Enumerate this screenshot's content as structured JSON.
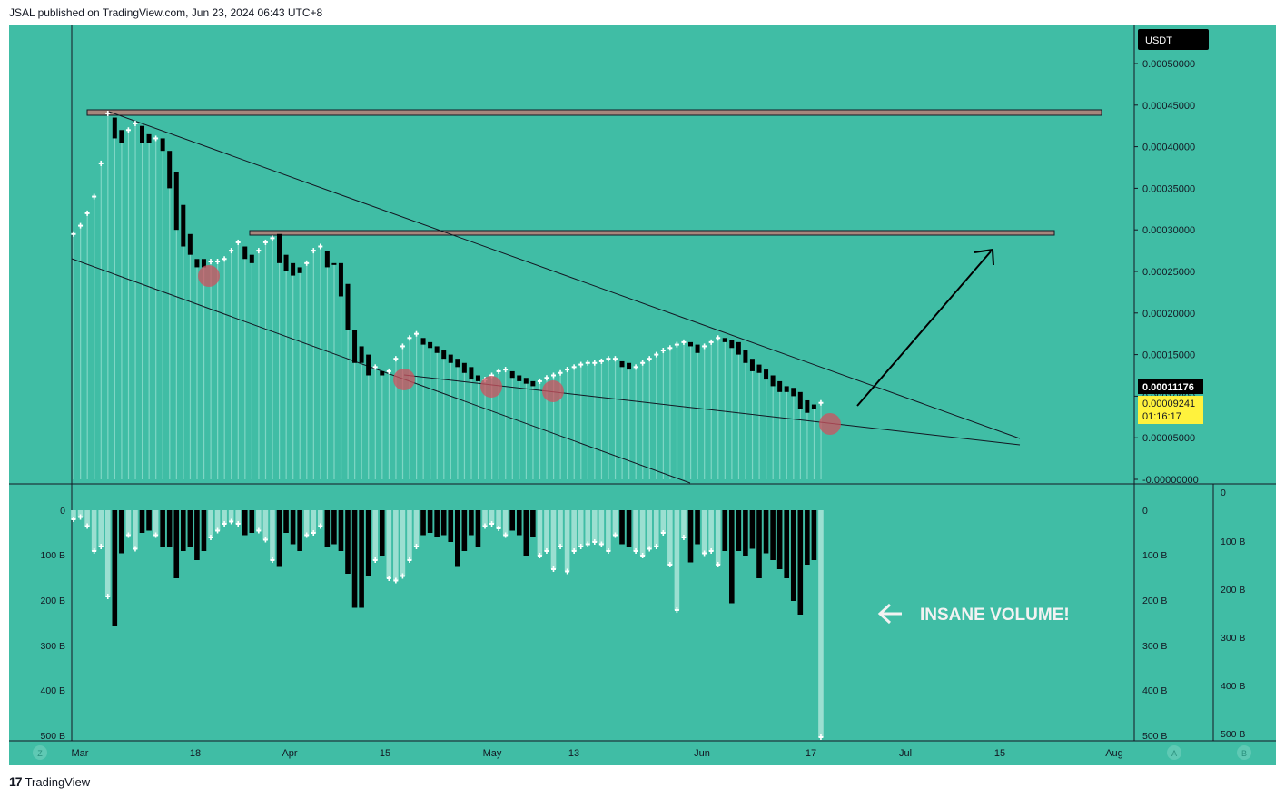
{
  "header": {
    "published": "JSAL published on TradingView.com, Jun 23, 2024 06:43 UTC+8"
  },
  "footer": {
    "brand": "TradingView"
  },
  "colors": {
    "background": "#40bda5",
    "bear_candle": "#000000",
    "bull_candle": "#ffffff",
    "line_histogram": "#7fd6c5",
    "resistance_box": "#a7867c",
    "touch_circle": "#d0525f",
    "last_price_bg": "#000000",
    "current_price_bg": "#fff23d"
  },
  "price_axis": {
    "currency": "USDT",
    "ticks": [
      "0.00050000",
      "0.00045000",
      "0.00040000",
      "0.00035000",
      "0.00030000",
      "0.00025000",
      "0.00020000",
      "0.00015000",
      "0.00010000",
      "0.00005000",
      "-0.00000000"
    ],
    "last_price": "0.00011176",
    "current_price": "0.00009241",
    "countdown": "01:16:17"
  },
  "volume_axis": {
    "left_ticks": [
      "0",
      "100 B",
      "200 B",
      "300 B",
      "400 B",
      "500 B"
    ],
    "inner_right_ticks": [
      "0",
      "100 B",
      "200 B",
      "300 B",
      "400 B",
      "500 B"
    ],
    "outer_right_ticks": [
      "0",
      "100 B",
      "200 B",
      "300 B",
      "400 B",
      "500 B"
    ]
  },
  "time_axis": {
    "ticks": [
      "Mar",
      "18",
      "Apr",
      "15",
      "May",
      "13",
      "Jun",
      "17",
      "Jul",
      "15",
      "Aug"
    ],
    "scale_buttons": [
      "Z",
      "A",
      "B"
    ]
  },
  "annotations": {
    "volume_note": "INSANE VOLUME!"
  },
  "chart_data": {
    "type": "candlestick",
    "series": [
      {
        "name": "price",
        "points": [
          [
            0,
            0.000295,
            0.000295,
            "up"
          ],
          [
            1,
            0.000305,
            0.000305,
            "up"
          ],
          [
            2,
            0.00032,
            0.00032,
            "up"
          ],
          [
            3,
            0.00034,
            0.00034,
            "up"
          ],
          [
            4,
            0.00037,
            0.00038,
            "up"
          ],
          [
            5,
            0.00043,
            0.00044,
            "up"
          ],
          [
            6,
            0.000435,
            0.00041,
            "down"
          ],
          [
            7,
            0.00042,
            0.000405,
            "down"
          ],
          [
            8,
            0.00042,
            0.000418,
            "up"
          ],
          [
            9,
            0.000425,
            0.000428,
            "up"
          ],
          [
            10,
            0.000425,
            0.000405,
            "down"
          ],
          [
            11,
            0.000415,
            0.000405,
            "down"
          ],
          [
            12,
            0.00041,
            0.00041,
            "up"
          ],
          [
            13,
            0.00041,
            0.000395,
            "down"
          ],
          [
            14,
            0.000395,
            0.00035,
            "down"
          ],
          [
            15,
            0.00037,
            0.0003,
            "down"
          ],
          [
            16,
            0.00033,
            0.00028,
            "down"
          ],
          [
            17,
            0.000295,
            0.00027,
            "down"
          ],
          [
            18,
            0.000265,
            0.000255,
            "down"
          ],
          [
            19,
            0.000265,
            0.000255,
            "down"
          ],
          [
            20,
            0.000262,
            0.000258,
            "up"
          ],
          [
            21,
            0.000262,
            0.000262,
            "up"
          ],
          [
            22,
            0.000265,
            0.000265,
            "up"
          ],
          [
            23,
            0.000275,
            0.000275,
            "up"
          ],
          [
            24,
            0.000285,
            0.000285,
            "up"
          ],
          [
            25,
            0.00028,
            0.000265,
            "down"
          ],
          [
            26,
            0.00027,
            0.00026,
            "down"
          ],
          [
            27,
            0.000275,
            0.000275,
            "up"
          ],
          [
            28,
            0.000285,
            0.000285,
            "up"
          ],
          [
            29,
            0.00029,
            0.00029,
            "up"
          ],
          [
            30,
            0.000295,
            0.00026,
            "down"
          ],
          [
            31,
            0.00027,
            0.00025,
            "down"
          ],
          [
            32,
            0.00026,
            0.000245,
            "down"
          ],
          [
            33,
            0.000255,
            0.000248,
            "down"
          ],
          [
            34,
            0.00026,
            0.00026,
            "up"
          ],
          [
            35,
            0.000275,
            0.000275,
            "up"
          ],
          [
            36,
            0.00028,
            0.00028,
            "up"
          ],
          [
            37,
            0.000275,
            0.000255,
            "down"
          ],
          [
            38,
            0.00026,
            0.00026,
            "down"
          ],
          [
            39,
            0.00026,
            0.00022,
            "down"
          ],
          [
            40,
            0.000235,
            0.00018,
            "down"
          ],
          [
            41,
            0.00018,
            0.00014,
            "down"
          ],
          [
            42,
            0.00016,
            0.00014,
            "down"
          ],
          [
            43,
            0.00015,
            0.000125,
            "down"
          ],
          [
            44,
            0.000135,
            0.000125,
            "up"
          ],
          [
            45,
            0.00013,
            0.000125,
            "down"
          ],
          [
            46,
            0.00013,
            0.00013,
            "up"
          ],
          [
            47,
            0.000145,
            0.000145,
            "up"
          ],
          [
            48,
            0.00016,
            0.00016,
            "up"
          ],
          [
            49,
            0.00017,
            0.00017,
            "up"
          ],
          [
            50,
            0.000175,
            0.000175,
            "up"
          ],
          [
            51,
            0.00017,
            0.000162,
            "down"
          ],
          [
            52,
            0.000165,
            0.000158,
            "down"
          ],
          [
            53,
            0.00016,
            0.000152,
            "down"
          ],
          [
            54,
            0.000155,
            0.000145,
            "down"
          ],
          [
            55,
            0.00015,
            0.00014,
            "down"
          ],
          [
            56,
            0.000145,
            0.000135,
            "down"
          ],
          [
            57,
            0.00014,
            0.000128,
            "down"
          ],
          [
            58,
            0.000135,
            0.00012,
            "down"
          ],
          [
            59,
            0.000125,
            0.000118,
            "down"
          ],
          [
            60,
            0.00012,
            0.00012,
            "up"
          ],
          [
            61,
            0.000125,
            0.000125,
            "up"
          ],
          [
            62,
            0.00013,
            0.00013,
            "up"
          ],
          [
            63,
            0.000132,
            0.000132,
            "up"
          ],
          [
            64,
            0.00013,
            0.000122,
            "down"
          ],
          [
            65,
            0.000125,
            0.000118,
            "down"
          ],
          [
            66,
            0.000122,
            0.000115,
            "down"
          ],
          [
            67,
            0.000118,
            0.000112,
            "down"
          ],
          [
            68,
            0.000118,
            0.000118,
            "up"
          ],
          [
            69,
            0.000122,
            0.000122,
            "up"
          ],
          [
            70,
            0.000125,
            0.000125,
            "up"
          ],
          [
            71,
            0.000128,
            0.000128,
            "up"
          ],
          [
            72,
            0.000132,
            0.000132,
            "up"
          ],
          [
            73,
            0.000135,
            0.000135,
            "up"
          ],
          [
            74,
            0.000138,
            0.000138,
            "up"
          ],
          [
            75,
            0.00014,
            0.00014,
            "up"
          ],
          [
            76,
            0.00014,
            0.00014,
            "up"
          ],
          [
            77,
            0.000142,
            0.000142,
            "up"
          ],
          [
            78,
            0.000145,
            0.000145,
            "up"
          ],
          [
            79,
            0.000145,
            0.000145,
            "up"
          ],
          [
            80,
            0.000142,
            0.000135,
            "down"
          ],
          [
            81,
            0.00014,
            0.000132,
            "down"
          ],
          [
            82,
            0.000135,
            0.000135,
            "up"
          ],
          [
            83,
            0.00014,
            0.00014,
            "up"
          ],
          [
            84,
            0.000145,
            0.000145,
            "up"
          ],
          [
            85,
            0.00015,
            0.00015,
            "up"
          ],
          [
            86,
            0.000155,
            0.000155,
            "up"
          ],
          [
            87,
            0.000158,
            0.000158,
            "up"
          ],
          [
            88,
            0.000162,
            0.000162,
            "up"
          ],
          [
            89,
            0.000165,
            0.000165,
            "up"
          ],
          [
            90,
            0.000165,
            0.00016,
            "down"
          ],
          [
            91,
            0.000162,
            0.000152,
            "down"
          ],
          [
            92,
            0.00016,
            0.00016,
            "up"
          ],
          [
            93,
            0.000165,
            0.000165,
            "up"
          ],
          [
            94,
            0.00017,
            0.00017,
            "up"
          ],
          [
            95,
            0.00017,
            0.000165,
            "down"
          ],
          [
            96,
            0.000168,
            0.000158,
            "down"
          ],
          [
            97,
            0.000165,
            0.00015,
            "down"
          ],
          [
            98,
            0.000155,
            0.00014,
            "down"
          ],
          [
            99,
            0.000145,
            0.00013,
            "down"
          ],
          [
            100,
            0.000138,
            0.000128,
            "down"
          ],
          [
            101,
            0.000132,
            0.00012,
            "down"
          ],
          [
            102,
            0.000125,
            0.000112,
            "down"
          ],
          [
            103,
            0.000118,
            0.000105,
            "down"
          ],
          [
            104,
            0.000112,
            0.000105,
            "down"
          ],
          [
            105,
            0.00011,
            0.0001,
            "down"
          ],
          [
            106,
            0.000105,
            8.5e-05,
            "down"
          ],
          [
            107,
            9.5e-05,
            8e-05,
            "down"
          ],
          [
            108,
            9e-05,
            8.5e-05,
            "down"
          ],
          [
            109,
            9.2e-05,
            9.2e-05,
            "up"
          ]
        ]
      },
      {
        "name": "volume_bn",
        "values": [
          20,
          15,
          35,
          90,
          80,
          190,
          255,
          95,
          55,
          85,
          50,
          45,
          55,
          80,
          80,
          150,
          90,
          80,
          110,
          90,
          60,
          45,
          30,
          25,
          30,
          55,
          50,
          45,
          65,
          110,
          125,
          50,
          75,
          90,
          55,
          50,
          35,
          80,
          75,
          90,
          140,
          215,
          215,
          145,
          110,
          100,
          150,
          155,
          145,
          110,
          80,
          55,
          50,
          60,
          55,
          70,
          125,
          90,
          55,
          80,
          35,
          30,
          40,
          55,
          45,
          55,
          100,
          60,
          100,
          90,
          130,
          80,
          135,
          90,
          80,
          75,
          70,
          75,
          90,
          55,
          75,
          80,
          90,
          100,
          85,
          80,
          50,
          120,
          220,
          60,
          115,
          75,
          95,
          90,
          120,
          90,
          205,
          90,
          100,
          85,
          150,
          95,
          110,
          130,
          150,
          200,
          230,
          120,
          110,
          500
        ]
      }
    ],
    "ylim": [
      0,
      0.00052
    ],
    "y2lim": [
      0,
      500
    ]
  }
}
